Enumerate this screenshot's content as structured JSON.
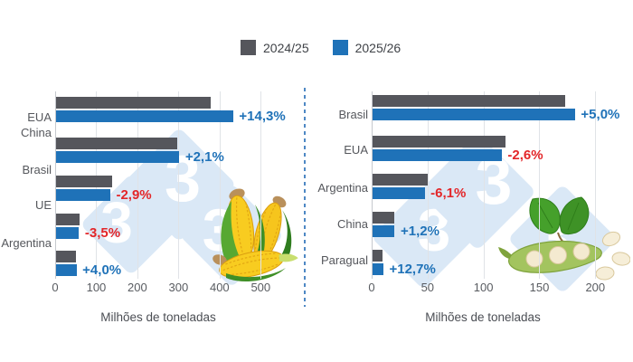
{
  "legend": {
    "items": [
      {
        "label": "2024/25",
        "color": "#55565C"
      },
      {
        "label": "2025/26",
        "color": "#1F72B8"
      }
    ]
  },
  "chart_data": [
    {
      "type": "bar",
      "orientation": "horizontal",
      "icon": "corn-icon",
      "categories": [
        "EUA",
        "China",
        "Brasil",
        "UE",
        "Argentina"
      ],
      "series": [
        {
          "name": "2024/25",
          "color": "#55565C",
          "values": [
            378,
            295,
            137,
            59,
            49
          ]
        },
        {
          "name": "2025/26",
          "color": "#1F72B8",
          "values": [
            432,
            301,
            133,
            57,
            51
          ]
        }
      ],
      "change_labels": [
        "+14,3%",
        "+2,1%",
        "-2,9%",
        "-3,5%",
        "+4,0%"
      ],
      "xlabel": "Milhões de toneladas",
      "xlim": [
        0,
        500
      ],
      "x_ticks": [
        0,
        100,
        200,
        300,
        400,
        500
      ],
      "grid": true,
      "legend_position": "top"
    },
    {
      "type": "bar",
      "orientation": "horizontal",
      "icon": "soybean-icon",
      "categories": [
        "Brasil",
        "EUA",
        "Argentina",
        "China",
        "Paragual"
      ],
      "series": [
        {
          "name": "2024/25",
          "color": "#55565C",
          "values": [
            173,
            119,
            50,
            20,
            9
          ]
        },
        {
          "name": "2025/26",
          "color": "#1F72B8",
          "values": [
            181.5,
            116,
            47,
            20.2,
            10.1
          ]
        }
      ],
      "change_labels": [
        "+5,0%",
        "-2,6%",
        "-6,1%",
        "+1,2%",
        "+12,7%"
      ],
      "xlabel": "Milhões de toneladas",
      "xlim": [
        0,
        200
      ],
      "x_ticks": [
        0,
        50,
        100,
        150,
        200
      ],
      "grid": true,
      "legend_position": "top"
    }
  ],
  "watermark": {
    "digit": "3"
  },
  "colors": {
    "bar_2024_25": "#55565C",
    "bar_2025_26": "#1F72B8",
    "positive_change": "#1F72B8",
    "negative_change": "#E32629",
    "axis_text": "#595C61",
    "category_text": "#55575C",
    "legend_text": "#3F4247",
    "gridline": "#E0E3E7",
    "axis_line": "#C6C9CE",
    "watermark_fill": "#DAE8F6",
    "watermark_digit": "#FFFFFF",
    "divider": "#4E88C4"
  }
}
